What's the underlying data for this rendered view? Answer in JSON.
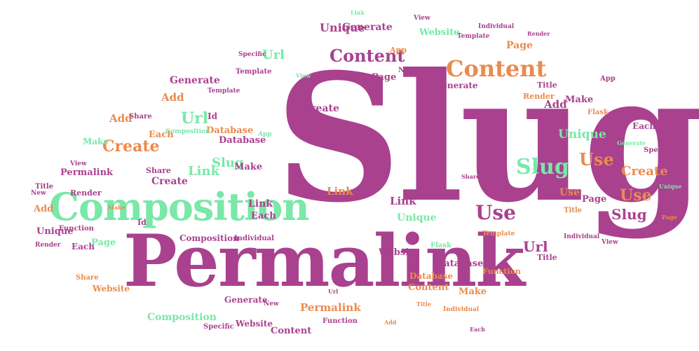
{
  "words": {
    "slug": "Slug",
    "permalink": "Permalink",
    "composition": "Composition",
    "content": "Content",
    "create": "Create",
    "use": "Use",
    "url": "Url",
    "link": "Link",
    "unique": "Unique",
    "generate": "Generate",
    "add": "Add",
    "make": "Make",
    "page": "Page",
    "each": "Each",
    "database": "Database",
    "website": "Website",
    "function": "Function",
    "share": "Share",
    "render": "Render",
    "title": "Title",
    "id": "Id",
    "individual": "Individual",
    "template": "Template",
    "flask": "Flask",
    "view": "View",
    "app": "App",
    "new": "New",
    "specific": "Specific"
  },
  "colors": {
    "purple": "#a9418f",
    "orange": "#ea8b4e",
    "green": "#79e8a8"
  }
}
